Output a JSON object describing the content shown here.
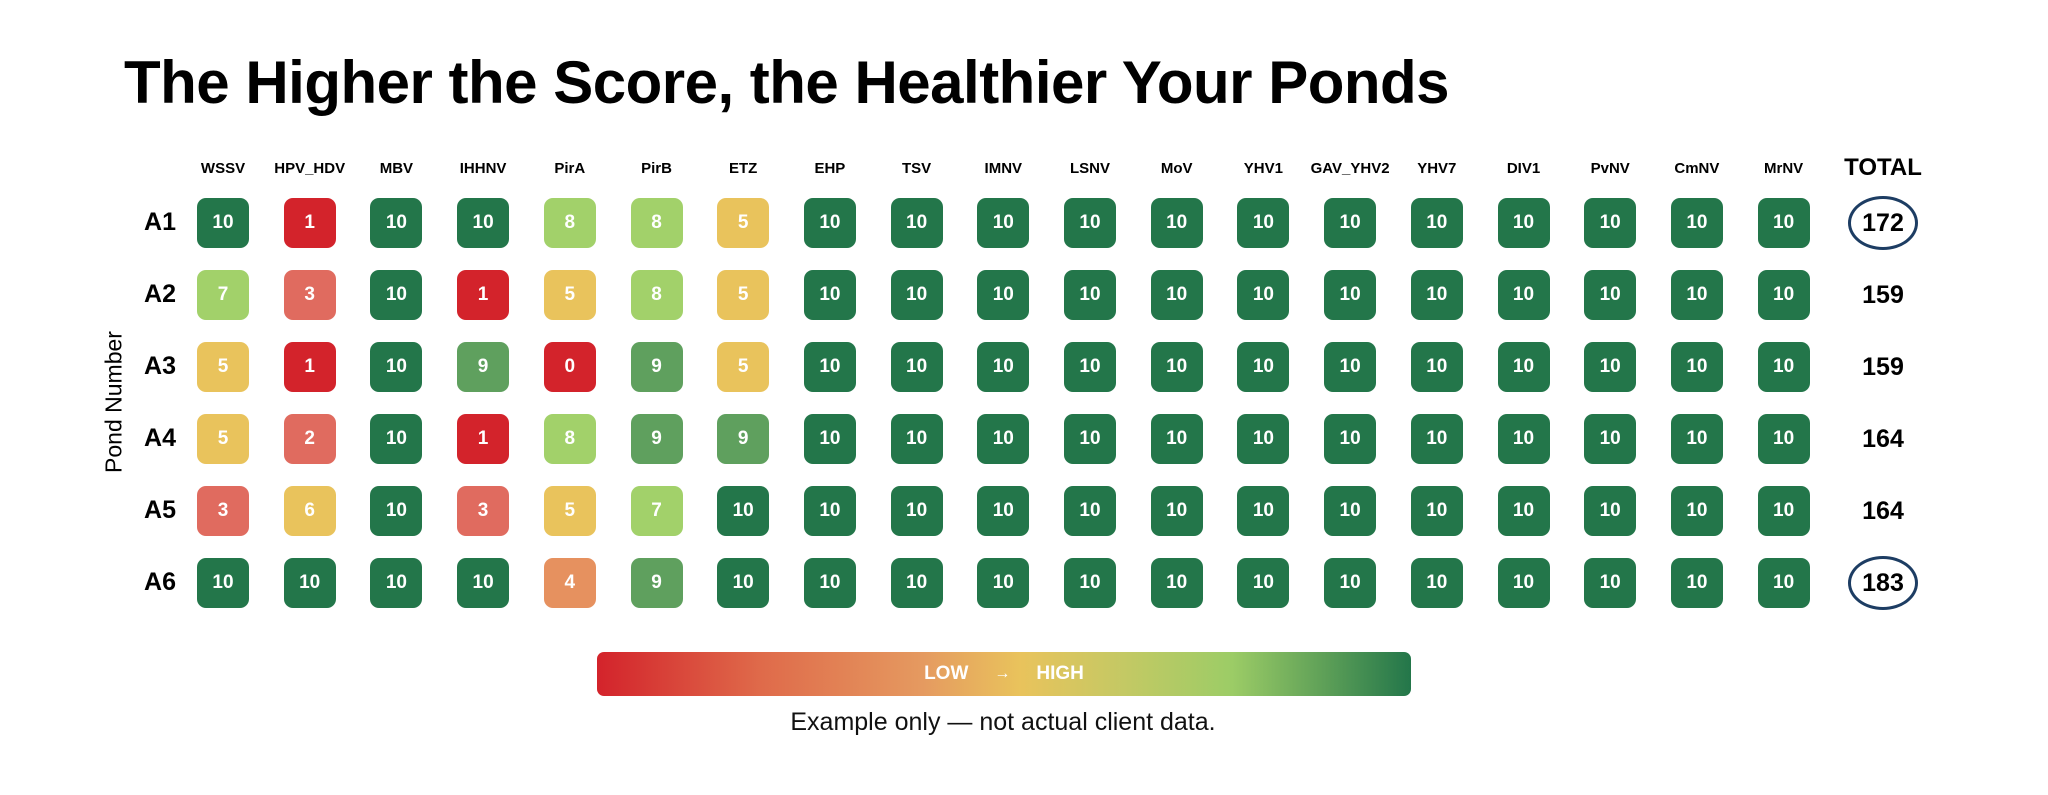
{
  "title": "The Higher the Score, the Healthier Your Ponds",
  "chart_data": {
    "type": "heatmap",
    "title": "The Higher the Score, the Healthier Your Ponds",
    "ylabel": "Pond Number",
    "columns": [
      "WSSV",
      "HPV_HDV",
      "MBV",
      "IHHNV",
      "PirA",
      "PirB",
      "ETZ",
      "EHP",
      "TSV",
      "IMNV",
      "LSNV",
      "MoV",
      "YHV1",
      "GAV_YHV2",
      "YHV7",
      "DIV1",
      "PvNV",
      "CmNV",
      "MrNV"
    ],
    "total_label": "TOTAL",
    "rows": [
      {
        "label": "A1",
        "values": [
          10,
          1,
          10,
          10,
          8,
          8,
          5,
          10,
          10,
          10,
          10,
          10,
          10,
          10,
          10,
          10,
          10,
          10,
          10
        ],
        "total": "172",
        "circled": true
      },
      {
        "label": "A2",
        "values": [
          7,
          3,
          10,
          1,
          5,
          8,
          5,
          10,
          10,
          10,
          10,
          10,
          10,
          10,
          10,
          10,
          10,
          10,
          10
        ],
        "total": "159",
        "circled": false
      },
      {
        "label": "A3",
        "values": [
          5,
          1,
          10,
          9,
          0,
          9,
          5,
          10,
          10,
          10,
          10,
          10,
          10,
          10,
          10,
          10,
          10,
          10,
          10
        ],
        "total": "159",
        "circled": false
      },
      {
        "label": "A4",
        "values": [
          5,
          2,
          10,
          1,
          8,
          9,
          9,
          10,
          10,
          10,
          10,
          10,
          10,
          10,
          10,
          10,
          10,
          10,
          10
        ],
        "total": "164",
        "circled": false
      },
      {
        "label": "A5",
        "values": [
          3,
          6,
          10,
          3,
          5,
          7,
          10,
          10,
          10,
          10,
          10,
          10,
          10,
          10,
          10,
          10,
          10,
          10,
          10
        ],
        "total": "164",
        "circled": false
      },
      {
        "label": "A6",
        "values": [
          10,
          10,
          10,
          10,
          4,
          9,
          10,
          10,
          10,
          10,
          10,
          10,
          10,
          10,
          10,
          10,
          10,
          10,
          10
        ],
        "total": "183",
        "circled": true
      }
    ],
    "value_range": [
      0,
      10
    ],
    "color_scale": {
      "0": "#d3232b",
      "1": "#d3232b",
      "2": "#e06b5f",
      "3": "#e06b5f",
      "4": "#e6915f",
      "5": "#e9c35c",
      "6": "#e9c35c",
      "7": "#a2d16a",
      "8": "#a2d16a",
      "9": "#5fa05e",
      "10": "#23764a"
    },
    "highlight_color": "#1d3d63"
  },
  "legend": {
    "low": "LOW",
    "arrow": "→",
    "high": "HIGH"
  },
  "caption": "Example only — not actual client data."
}
